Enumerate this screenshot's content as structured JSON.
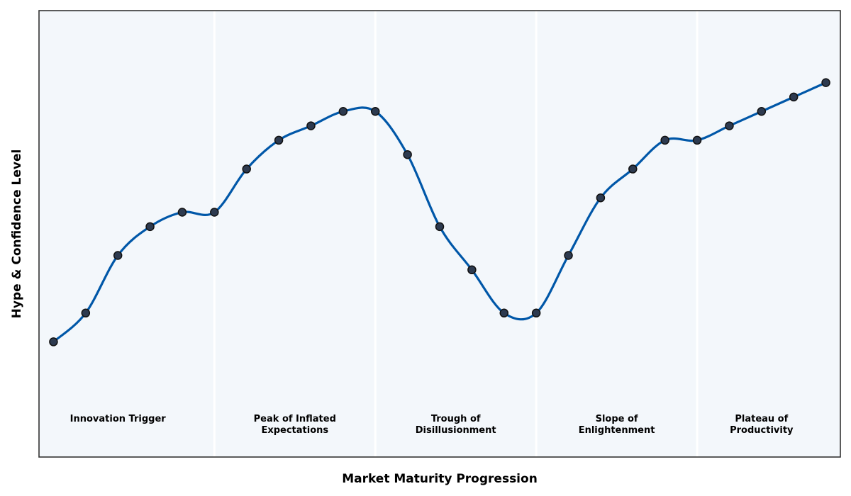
{
  "chart_data": {
    "type": "line",
    "title": "",
    "xlabel": "Market Maturity Progression",
    "ylabel": "Hype & Confidence Level",
    "xlim": [
      0.55,
      25.45
    ],
    "ylim": [
      0,
      1.55
    ],
    "grid": false,
    "legend": "none",
    "colors": {
      "line": "#0057a8",
      "marker_fill": "#2d3a4f",
      "marker_edge": "#111111",
      "band_fill": "#f3f7fb",
      "band_divider": "#ffffff",
      "frame": "#333333"
    },
    "phases": [
      {
        "lines": [
          "Innovation Trigger"
        ],
        "x_range": [
          0.55,
          6
        ]
      },
      {
        "lines": [
          "Peak of Inflated",
          "Expectations"
        ],
        "x_range": [
          6,
          11
        ]
      },
      {
        "lines": [
          "Trough of",
          "Disillusionment"
        ],
        "x_range": [
          11,
          16
        ]
      },
      {
        "lines": [
          "Slope of",
          "Enlightenment"
        ],
        "x_range": [
          16,
          21
        ]
      },
      {
        "lines": [
          "Plateau of",
          "Productivity"
        ],
        "x_range": [
          21,
          25.45
        ]
      }
    ],
    "series": [
      {
        "x": [
          1,
          2,
          3,
          4,
          5,
          6,
          7,
          8,
          9,
          10,
          11,
          12,
          13,
          14,
          15,
          16,
          17,
          18,
          19,
          20,
          21,
          22,
          23,
          24,
          25
        ],
        "values": [
          0.4,
          0.5,
          0.7,
          0.8,
          0.85,
          0.85,
          1.0,
          1.1,
          1.15,
          1.2,
          1.2,
          1.05,
          0.8,
          0.65,
          0.5,
          0.5,
          0.7,
          0.9,
          1.0,
          1.1,
          1.1,
          1.15,
          1.2,
          1.25,
          1.3
        ]
      }
    ]
  }
}
